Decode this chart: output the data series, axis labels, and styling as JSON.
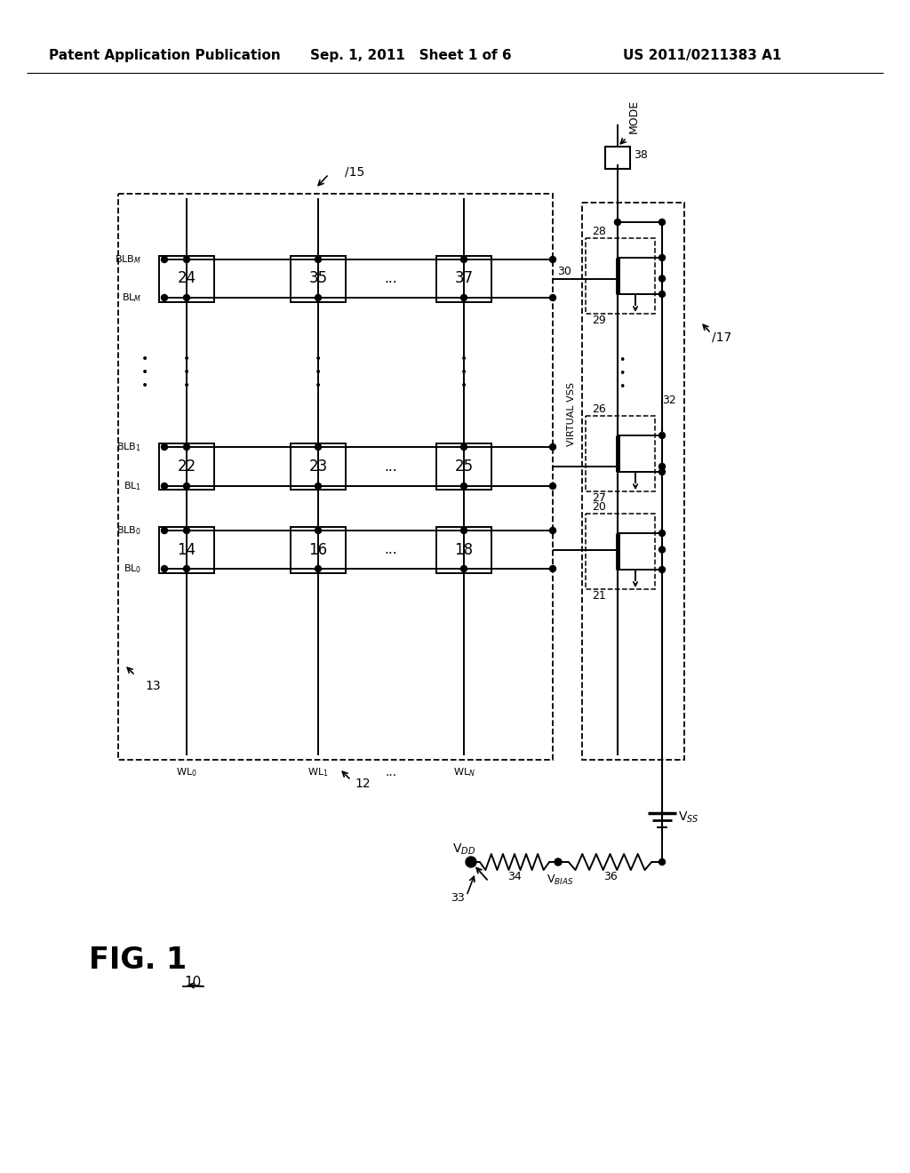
{
  "header_left": "Patent Application Publication",
  "header_mid": "Sep. 1, 2011   Sheet 1 of 6",
  "header_right": "US 2011/0211383 A1",
  "bg_color": "#ffffff"
}
